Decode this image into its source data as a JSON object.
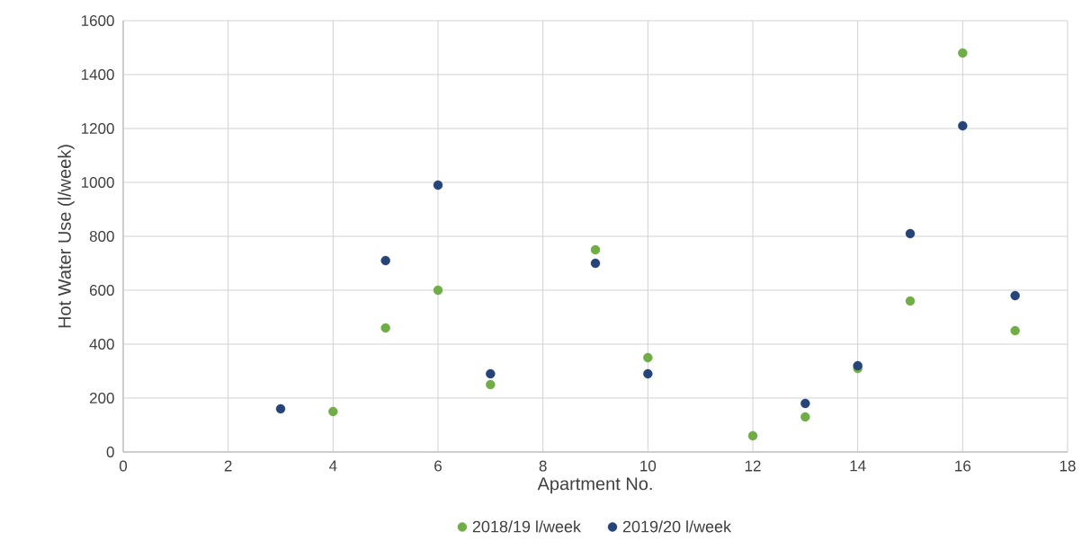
{
  "chart_data": {
    "type": "scatter",
    "xlabel": "Apartment No.",
    "ylabel": "Hot Water Use (l/week)",
    "xlim": [
      0,
      18
    ],
    "xticks": [
      0,
      2,
      4,
      6,
      8,
      10,
      12,
      14,
      16,
      18
    ],
    "ylim": [
      0,
      1600
    ],
    "yticks": [
      0,
      200,
      400,
      600,
      800,
      1000,
      1200,
      1400,
      1600
    ],
    "grid": true,
    "legend": "bottom",
    "series": [
      {
        "name": "2018/19 l/week",
        "color": "#70ad47",
        "x": [
          4,
          5,
          6,
          7,
          9,
          10,
          12,
          13,
          14,
          15,
          16,
          17
        ],
        "values": [
          150,
          460,
          600,
          250,
          750,
          350,
          60,
          130,
          310,
          560,
          1480,
          450
        ]
      },
      {
        "name": "2019/20 l/week",
        "color": "#264478",
        "x": [
          3,
          5,
          6,
          7,
          9,
          10,
          13,
          14,
          15,
          16,
          17
        ],
        "values": [
          160,
          710,
          990,
          290,
          700,
          290,
          180,
          320,
          810,
          1210,
          580
        ]
      }
    ]
  }
}
